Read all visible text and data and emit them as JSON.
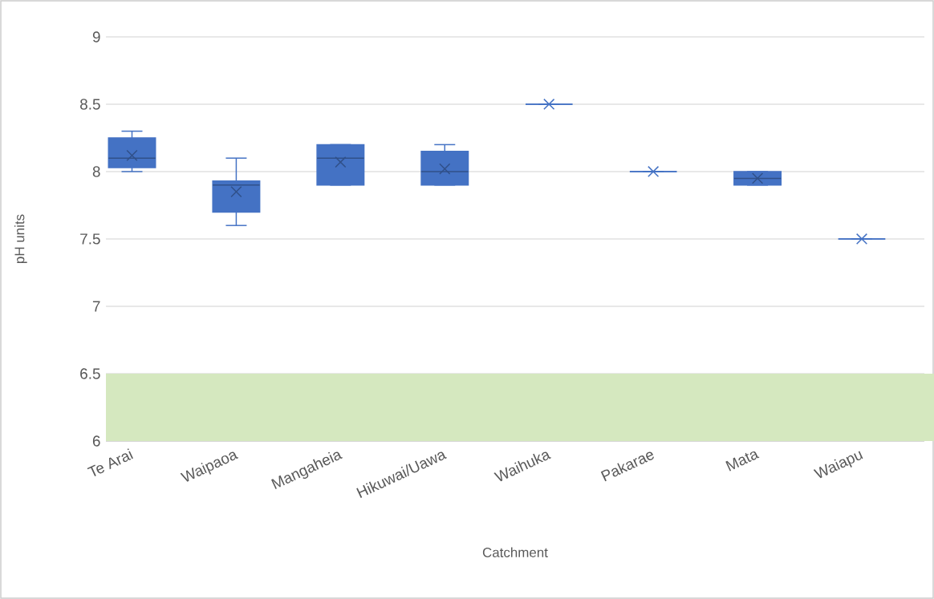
{
  "chart_data": {
    "type": "box",
    "xlabel": "Catchment",
    "ylabel": "pH units",
    "categories": [
      "Te Arai",
      "Waipaoa",
      "Mangaheia",
      "Hikuwai/Uawa",
      "Waihuka",
      "Pakarae",
      "Mata",
      "Waiapu"
    ],
    "boxes": [
      {
        "low": 8.0,
        "q1": 8.03,
        "median": 8.1,
        "q3": 8.25,
        "high": 8.3,
        "mean": 8.12
      },
      {
        "low": 7.6,
        "q1": 7.7,
        "median": 7.9,
        "q3": 7.93,
        "high": 8.1,
        "mean": 7.85
      },
      {
        "low": 7.9,
        "q1": 7.9,
        "median": 8.1,
        "q3": 8.2,
        "high": 8.2,
        "mean": 8.07
      },
      {
        "low": 7.9,
        "q1": 7.9,
        "median": 8.0,
        "q3": 8.15,
        "high": 8.2,
        "mean": 8.02
      },
      {
        "low": 8.5,
        "q1": 8.5,
        "median": 8.5,
        "q3": 8.5,
        "high": 8.5,
        "mean": 8.5
      },
      {
        "low": 8.0,
        "q1": 8.0,
        "median": 8.0,
        "q3": 8.0,
        "high": 8.0,
        "mean": 8.0
      },
      {
        "low": 7.9,
        "q1": 7.9,
        "median": 7.95,
        "q3": 8.0,
        "high": 8.0,
        "mean": 7.95
      },
      {
        "low": 7.5,
        "q1": 7.5,
        "median": 7.5,
        "q3": 7.5,
        "high": 7.5,
        "mean": 7.5
      }
    ],
    "color": "#4472c4",
    "ylim": [
      6,
      9
    ],
    "yticks": [
      6,
      6.5,
      7,
      7.5,
      8,
      8.5,
      9
    ],
    "grid": "y",
    "marker": "cross",
    "bands": [
      {
        "axis": "y",
        "from": 6,
        "to": 6.5,
        "color": "#d5e8bf"
      }
    ]
  }
}
